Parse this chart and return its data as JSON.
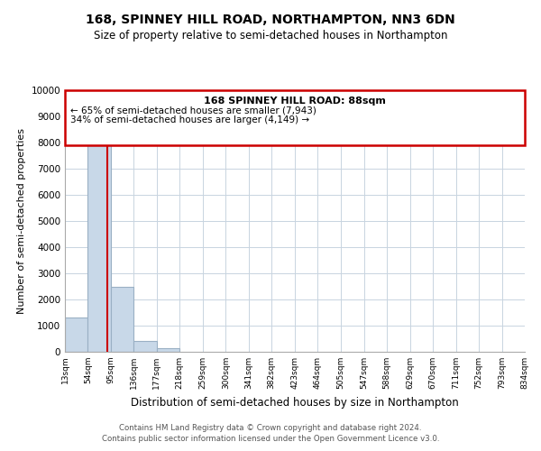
{
  "title": "168, SPINNEY HILL ROAD, NORTHAMPTON, NN3 6DN",
  "subtitle": "Size of property relative to semi-detached houses in Northampton",
  "xlabel": "Distribution of semi-detached houses by size in Northampton",
  "ylabel": "Number of semi-detached properties",
  "bar_edges": [
    13,
    54,
    95,
    136,
    177,
    218,
    259,
    300,
    341,
    382,
    423,
    464,
    505,
    547,
    588,
    629,
    670,
    711,
    752,
    793,
    834
  ],
  "bar_heights": [
    1300,
    8050,
    2500,
    400,
    150,
    0,
    0,
    0,
    0,
    0,
    0,
    0,
    0,
    0,
    0,
    0,
    0,
    0,
    0,
    0
  ],
  "bar_color": "#c8d8e8",
  "bar_edge_color": "#9ab0c4",
  "property_line_x": 88,
  "property_line_color": "#cc0000",
  "box_text_line1": "168 SPINNEY HILL ROAD: 88sqm",
  "box_text_line2": "← 65% of semi-detached houses are smaller (7,943)",
  "box_text_line3": "34% of semi-detached houses are larger (4,149) →",
  "box_color": "#cc0000",
  "ylim": [
    0,
    10000
  ],
  "yticks": [
    0,
    1000,
    2000,
    3000,
    4000,
    5000,
    6000,
    7000,
    8000,
    9000,
    10000
  ],
  "tick_labels": [
    "13sqm",
    "54sqm",
    "95sqm",
    "136sqm",
    "177sqm",
    "218sqm",
    "259sqm",
    "300sqm",
    "341sqm",
    "382sqm",
    "423sqm",
    "464sqm",
    "505sqm",
    "547sqm",
    "588sqm",
    "629sqm",
    "670sqm",
    "711sqm",
    "752sqm",
    "793sqm",
    "834sqm"
  ],
  "footnote1": "Contains HM Land Registry data © Crown copyright and database right 2024.",
  "footnote2": "Contains public sector information licensed under the Open Government Licence v3.0.",
  "bg_color": "#ffffff",
  "grid_color": "#c8d4e0",
  "title_fontsize": 10,
  "subtitle_fontsize": 8.5,
  "ylabel_fontsize": 8,
  "xlabel_fontsize": 8.5
}
